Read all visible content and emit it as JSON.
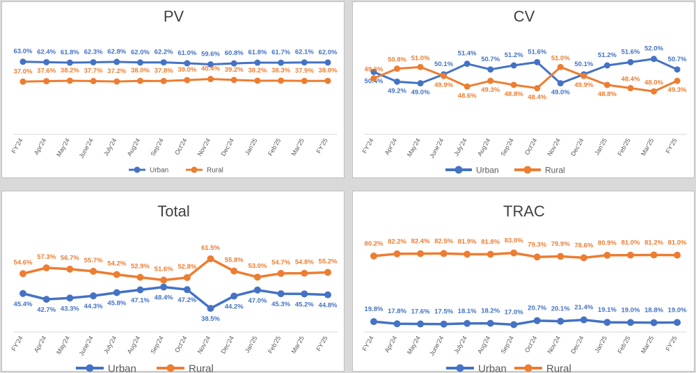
{
  "colors": {
    "urban": "#4472C4",
    "rural": "#ED7D31",
    "axis": "#D9D9D9",
    "title": "#404040",
    "tick": "#595959"
  },
  "chart_data": [
    {
      "type": "line",
      "title": "PV",
      "categories": [
        "FY'24",
        "Apr'24",
        "May'24",
        "June'24",
        "July'24",
        "Aug'24",
        "Sep'24",
        "Oct'24",
        "Nov'24",
        "Dec'24",
        "Jan'25",
        "Feb'25",
        "Mar'25",
        "FY'25"
      ],
      "series": [
        {
          "name": "Urban",
          "values": [
            63.0,
            62.4,
            61.8,
            62.3,
            62.8,
            62.0,
            62.2,
            61.0,
            59.6,
            60.8,
            61.8,
            61.7,
            62.1,
            62.0
          ],
          "labels": [
            "63.0%",
            "62.4%",
            "61.8%",
            "62.3%",
            "62.8%",
            "62.0%",
            "62.2%",
            "61.0%",
            "59.6%",
            "60.8%",
            "61.8%",
            "61.7%",
            "62.1%",
            "62.0%"
          ]
        },
        {
          "name": "Rural",
          "values": [
            37.0,
            37.6,
            38.2,
            37.7,
            37.2,
            38.0,
            37.8,
            39.0,
            40.4,
            39.2,
            38.2,
            38.3,
            37.9,
            38.0
          ],
          "labels": [
            "37.0%",
            "37.6%",
            "38.2%",
            "37.7%",
            "37.2%",
            "38.0%",
            "37.8%",
            "39.0%",
            "40.4%",
            "39.2%",
            "38.2%",
            "38.3%",
            "37.9%",
            "38.0%"
          ]
        }
      ],
      "legend": [
        "Urban",
        "Rural"
      ]
    },
    {
      "type": "line",
      "title": "CV",
      "categories": [
        "FY'24",
        "Apr'24",
        "May'24",
        "June'24",
        "July'24",
        "Aug'24",
        "Sep'24",
        "Oct'24",
        "Nov'24",
        "Dec'24",
        "Jan'25",
        "Feb'25",
        "Mar'25",
        "FY'25"
      ],
      "series": [
        {
          "name": "Urban",
          "values": [
            50.4,
            49.2,
            49.0,
            50.1,
            51.4,
            50.7,
            51.2,
            51.6,
            49.0,
            50.1,
            51.2,
            51.6,
            52.0,
            50.7
          ],
          "labels": [
            "50.4%",
            "49.2%",
            "49.0%",
            "50.1%",
            "51.4%",
            "50.7%",
            "51.2%",
            "51.6%",
            "49.0%",
            "50.1%",
            "51.2%",
            "51.6%",
            "52.0%",
            "50.7%"
          ]
        },
        {
          "name": "Rural",
          "values": [
            49.6,
            50.8,
            51.0,
            49.9,
            48.6,
            49.3,
            48.8,
            48.4,
            51.0,
            49.9,
            48.8,
            48.4,
            48.0,
            49.3
          ],
          "labels": [
            "49.6%",
            "50.8%",
            "51.0%",
            "49.9%",
            "48.6%",
            "49.3%",
            "48.8%",
            "48.4%",
            "51.0%",
            "49.9%",
            "48.8%",
            "48.4%",
            "48.0%",
            "49.3%"
          ]
        }
      ],
      "legend": [
        "Urban",
        "Rural"
      ]
    },
    {
      "type": "line",
      "title": "Total",
      "categories": [
        "FY'24",
        "Apr'24",
        "May'24",
        "June'24",
        "July'24",
        "Aug'24",
        "Sep'24",
        "Oct'24",
        "Nov'24",
        "Dec'24",
        "Jan'25",
        "Feb'25",
        "Mar'25",
        "FY'25"
      ],
      "series": [
        {
          "name": "Urban",
          "values": [
            45.4,
            42.7,
            43.3,
            44.3,
            45.8,
            47.1,
            48.4,
            47.2,
            38.5,
            44.2,
            47.0,
            45.3,
            45.2,
            44.8
          ],
          "labels": [
            "45.4%",
            "42.7%",
            "43.3%",
            "44.3%",
            "45.8%",
            "47.1%",
            "48.4%",
            "47.2%",
            "38.5%",
            "44.2%",
            "47.0%",
            "45.3%",
            "45.2%",
            "44.8%"
          ]
        },
        {
          "name": "Rural",
          "values": [
            54.6,
            57.3,
            56.7,
            55.7,
            54.2,
            52.9,
            51.6,
            52.8,
            61.5,
            55.8,
            53.0,
            54.7,
            54.8,
            55.2
          ],
          "labels": [
            "54.6%",
            "57.3%",
            "56.7%",
            "55.7%",
            "54.2%",
            "52.9%",
            "51.6%",
            "52.8%",
            "61.5%",
            "55.8%",
            "53.0%",
            "54.7%",
            "54.8%",
            "55.2%"
          ]
        }
      ],
      "legend": [
        "Urban",
        "Rural"
      ]
    },
    {
      "type": "line",
      "title": "TRAC",
      "categories": [
        "FY'24",
        "Apr'24",
        "May'24",
        "June'24",
        "July'24",
        "Aug'24",
        "Sep'24",
        "Oct'24",
        "Nov'24",
        "Dec'24",
        "Jan'25",
        "Feb'25",
        "Mar'25",
        "FY'25"
      ],
      "series": [
        {
          "name": "Urban",
          "values": [
            19.8,
            17.8,
            17.6,
            17.5,
            18.1,
            18.2,
            17.0,
            20.7,
            20.1,
            21.4,
            19.1,
            19.0,
            18.8,
            19.0
          ],
          "labels": [
            "19.8%",
            "17.8%",
            "17.6%",
            "17.5%",
            "18.1%",
            "18.2%",
            "17.0%",
            "20.7%",
            "20.1%",
            "21.4%",
            "19.1%",
            "19.0%",
            "18.8%",
            "19.0%"
          ]
        },
        {
          "name": "Rural",
          "values": [
            80.2,
            82.2,
            82.4,
            82.5,
            81.9,
            81.8,
            83.0,
            79.3,
            79.9,
            78.6,
            80.9,
            81.0,
            81.2,
            81.0
          ],
          "labels": [
            "80.2%",
            "82.2%",
            "82.4%",
            "82.5%",
            "81.9%",
            "81.8%",
            "83.0%",
            "79.3%",
            "79.9%",
            "78.6%",
            "80.9%",
            "81.0%",
            "81.2%",
            "81.0%"
          ]
        }
      ],
      "legend": [
        "Urban",
        "Rural"
      ]
    }
  ]
}
